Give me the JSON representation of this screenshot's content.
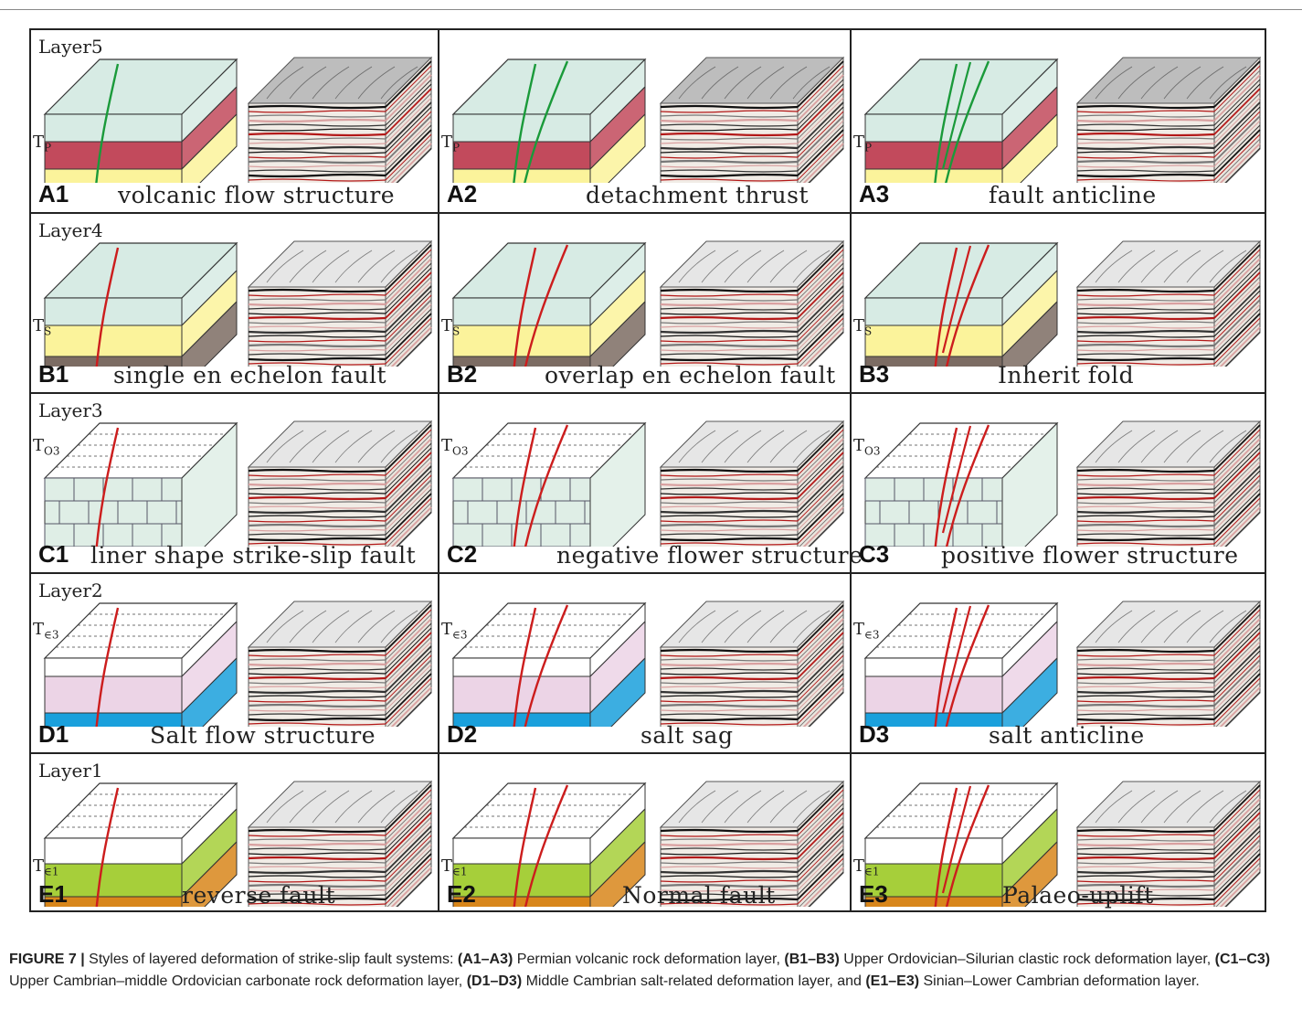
{
  "layers": {
    "layer5": "Layer5",
    "layer4": "Layer4",
    "layer3": "Layer3",
    "layer2": "Layer2",
    "layer1": "Layer1"
  },
  "markers": {
    "tp": "TP",
    "ts": "TS",
    "to3": "TO3",
    "te3": "T∈3",
    "te1": "T∈1"
  },
  "panels": {
    "A1": {
      "id": "A1",
      "title": "volcanic flow structure"
    },
    "A2": {
      "id": "A2",
      "title": "detachment thrust"
    },
    "A3": {
      "id": "A3",
      "title": "fault anticline"
    },
    "B1": {
      "id": "B1",
      "title": "single en echelon fault"
    },
    "B2": {
      "id": "B2",
      "title": "overlap en echelon fault"
    },
    "B3": {
      "id": "B3",
      "title": "Inherit  fold"
    },
    "C1": {
      "id": "C1",
      "title": "liner shape strike-slip fault"
    },
    "C2": {
      "id": "C2",
      "title": "negative flower structure"
    },
    "C3": {
      "id": "C3",
      "title": "positive flower structure"
    },
    "D1": {
      "id": "D1",
      "title": "Salt flow structure"
    },
    "D2": {
      "id": "D2",
      "title": "salt  sag"
    },
    "D3": {
      "id": "D3",
      "title": "salt  anticline"
    },
    "E1": {
      "id": "E1",
      "title": "reverse fault"
    },
    "E2": {
      "id": "E2",
      "title": "Normal fault"
    },
    "E3": {
      "id": "E3",
      "title": "Palaeo-uplift"
    }
  },
  "caption": {
    "label": "FIGURE 7 |",
    "intro": " Styles of layered deformation of strike-slip fault systems: ",
    "a_ref": "(A1–A3)",
    "a_text": " Permian volcanic rock deformation layer, ",
    "b_ref": "(B1–B3)",
    "b_text": " Upper Ordovician–Silurian clastic rock deformation layer, ",
    "c_ref": "(C1–C3)",
    "c_text": " Upper Cambrian–middle Ordovician carbonate rock deformation layer, ",
    "d_ref": "(D1–D3)",
    "d_text": " Middle Cambrian salt-related deformation layer, and ",
    "e_ref": "(E1–E3)",
    "e_text": " Sinian–Lower Cambrian deformation layer."
  },
  "colors": {
    "teal": "#d7ebe4",
    "red_layer": "#c24a5c",
    "yellow": "#fbf39b",
    "brown": "#7c6c63",
    "pink": "#ecd4e6",
    "blue": "#1aa0dc",
    "green_layer": "#a6cf3a",
    "orange": "#d8861b",
    "fault_green": "#1a9a3a",
    "fault_red": "#cc1d1d"
  }
}
